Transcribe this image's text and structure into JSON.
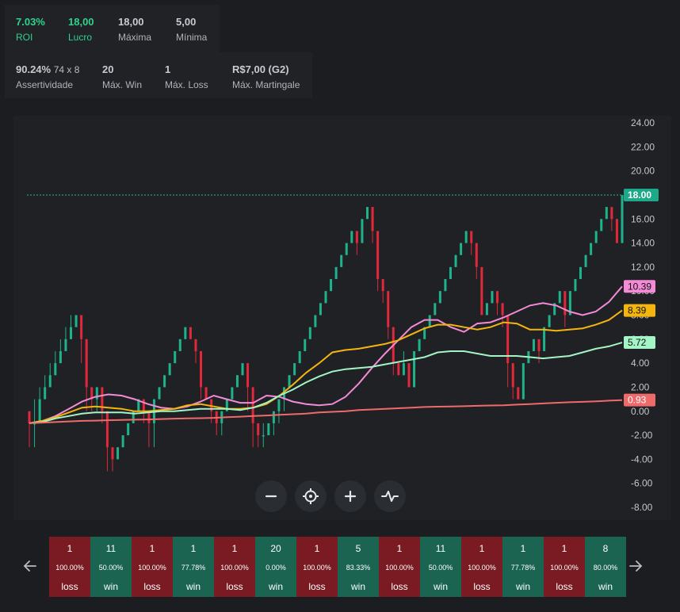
{
  "stats_row1": [
    {
      "value": "7.03%",
      "label": "ROI",
      "accent": "#2fd28e"
    },
    {
      "value": "18,00",
      "label": "Lucro",
      "accent": "#2fd28e"
    },
    {
      "value": "18,00",
      "label": "Máxima"
    },
    {
      "value": "5,00",
      "label": "Mínima"
    }
  ],
  "stats_row2": [
    {
      "value": "90.24%",
      "sub": "74 x 8",
      "label": "Assertividade"
    },
    {
      "value": "20",
      "label": "Máx. Win"
    },
    {
      "value": "1",
      "label": "Máx. Loss"
    },
    {
      "value": "R$7,00 (G2)",
      "label": "Máx. Martingale"
    }
  ],
  "chart_data": {
    "type": "candlestick",
    "y_ticks": [
      "24.00",
      "22.00",
      "20.00",
      "18.00",
      "16.00",
      "14.00",
      "12.00",
      "10.00",
      "8.00",
      "6.00",
      "4.00",
      "2.00",
      "0.00",
      "-2.00",
      "-4.00",
      "-6.00",
      "-8.00"
    ],
    "ylim": [
      -8,
      24
    ],
    "reference_line": 18,
    "up_color": "#1fb38c",
    "down_color": "#e2283b",
    "candles": [
      [
        0,
        -1,
        0,
        -3
      ],
      [
        -1,
        -1,
        1,
        -3
      ],
      [
        -1,
        1,
        2,
        -1
      ],
      [
        1,
        2,
        3,
        1
      ],
      [
        2,
        3,
        4,
        2
      ],
      [
        3,
        4,
        5,
        3
      ],
      [
        4,
        5,
        6,
        4
      ],
      [
        5,
        6,
        7,
        5
      ],
      [
        6,
        7,
        8,
        6
      ],
      [
        7,
        8,
        8,
        7
      ],
      [
        8,
        6,
        8,
        4
      ],
      [
        6,
        2,
        6,
        0
      ],
      [
        2,
        1,
        2,
        0
      ],
      [
        1,
        2,
        2,
        0
      ],
      [
        2,
        0,
        2,
        -1
      ],
      [
        0,
        -3,
        0,
        -5
      ],
      [
        -3,
        -4,
        -3,
        -5
      ],
      [
        -4,
        -3,
        -3,
        -4
      ],
      [
        -3,
        -2,
        -2,
        -3
      ],
      [
        -2,
        -1,
        -1,
        -2
      ],
      [
        -1,
        0,
        0,
        -1
      ],
      [
        0,
        1,
        1,
        0
      ],
      [
        1,
        0,
        1,
        -1
      ],
      [
        0,
        -1,
        0,
        -3
      ],
      [
        -1,
        1,
        1,
        -3
      ],
      [
        1,
        2,
        2,
        1
      ],
      [
        2,
        3,
        3,
        2
      ],
      [
        3,
        4,
        4,
        3
      ],
      [
        4,
        5,
        5,
        4
      ],
      [
        5,
        6,
        6,
        5
      ],
      [
        6,
        7,
        7,
        6
      ],
      [
        7,
        6,
        7,
        6
      ],
      [
        6,
        5,
        6,
        4
      ],
      [
        5,
        2,
        5,
        1
      ],
      [
        2,
        1,
        2,
        1
      ],
      [
        1,
        0,
        1,
        -1
      ],
      [
        0,
        -1,
        0,
        -2
      ],
      [
        -1,
        0,
        0,
        -2
      ],
      [
        0,
        1,
        1,
        0
      ],
      [
        1,
        2,
        2,
        1
      ],
      [
        2,
        3,
        3,
        2
      ],
      [
        3,
        4,
        4,
        3
      ],
      [
        4,
        2,
        4,
        0
      ],
      [
        2,
        -1,
        2,
        -3
      ],
      [
        -1,
        -2,
        -1,
        -3
      ],
      [
        -2,
        -2,
        -1,
        -3
      ],
      [
        -2,
        -1,
        -1,
        -2
      ],
      [
        -1,
        0,
        0,
        -2
      ],
      [
        0,
        1,
        1,
        -1
      ],
      [
        1,
        2,
        2,
        0
      ],
      [
        2,
        3,
        3,
        2
      ],
      [
        3,
        4,
        4,
        3
      ],
      [
        4,
        5,
        5,
        4
      ],
      [
        5,
        6,
        6,
        5
      ],
      [
        6,
        7,
        7,
        6
      ],
      [
        7,
        8,
        8,
        7
      ],
      [
        8,
        9,
        9,
        8
      ],
      [
        9,
        10,
        10,
        9
      ],
      [
        10,
        11,
        11,
        10
      ],
      [
        11,
        12,
        12,
        11
      ],
      [
        12,
        13,
        13,
        12
      ],
      [
        13,
        14,
        14,
        13
      ],
      [
        14,
        15,
        15,
        14
      ],
      [
        15,
        14,
        15,
        13
      ],
      [
        14,
        16,
        16,
        14
      ],
      [
        16,
        17,
        17,
        16
      ],
      [
        17,
        15,
        17,
        14
      ],
      [
        15,
        11,
        15,
        10
      ],
      [
        11,
        10,
        11,
        9
      ],
      [
        10,
        7,
        10,
        6
      ],
      [
        7,
        4,
        7,
        3
      ],
      [
        4,
        3,
        4,
        3
      ],
      [
        3,
        4,
        5,
        3
      ],
      [
        4,
        2,
        4,
        2
      ],
      [
        2,
        5,
        5,
        2
      ],
      [
        5,
        6,
        6,
        5
      ],
      [
        6,
        7,
        7,
        6
      ],
      [
        7,
        8,
        8,
        7
      ],
      [
        8,
        9,
        9,
        8
      ],
      [
        9,
        10,
        10,
        9
      ],
      [
        10,
        11,
        11,
        10
      ],
      [
        11,
        12,
        12,
        11
      ],
      [
        12,
        13,
        13,
        12
      ],
      [
        13,
        14,
        14,
        13
      ],
      [
        14,
        15,
        15,
        14
      ],
      [
        15,
        14,
        15,
        13
      ],
      [
        14,
        12,
        14,
        11
      ],
      [
        12,
        8,
        12,
        8
      ],
      [
        8,
        9,
        9,
        8
      ],
      [
        9,
        10,
        10,
        9
      ],
      [
        10,
        9,
        10,
        8
      ],
      [
        9,
        8,
        9,
        7
      ],
      [
        8,
        4,
        8,
        2
      ],
      [
        4,
        2,
        4,
        1
      ],
      [
        2,
        1,
        2,
        1
      ],
      [
        1,
        4,
        4,
        1
      ],
      [
        4,
        5,
        5,
        4
      ],
      [
        5,
        6,
        6,
        5
      ],
      [
        6,
        5,
        6,
        4
      ],
      [
        5,
        7,
        7,
        5
      ],
      [
        7,
        8,
        8,
        7
      ],
      [
        8,
        9,
        9,
        8
      ],
      [
        9,
        10,
        10,
        9
      ],
      [
        10,
        8,
        10,
        7
      ],
      [
        8,
        10,
        10,
        8
      ],
      [
        10,
        11,
        11,
        10
      ],
      [
        11,
        12,
        12,
        11
      ],
      [
        12,
        13,
        13,
        12
      ],
      [
        13,
        14,
        14,
        13
      ],
      [
        14,
        15,
        15,
        14
      ],
      [
        15,
        16,
        16,
        15
      ],
      [
        16,
        17,
        17,
        16
      ],
      [
        17,
        16,
        17,
        15
      ],
      [
        16,
        14,
        16,
        14
      ],
      [
        14,
        18,
        18,
        14
      ]
    ],
    "series": [
      {
        "name": "",
        "label": "10.39",
        "color": "#f58bd6",
        "values": [
          -1,
          -0.8,
          -0.4,
          0.2,
          0.8,
          1.2,
          1.4,
          1.3,
          1.0,
          0.6,
          0.3,
          0.2,
          0.4,
          0.8,
          1.3,
          1.0,
          0.7,
          0.7,
          1.3,
          1.2,
          0.8,
          0.6,
          0.5,
          0.6,
          1.2,
          2.3,
          3.6,
          4.8,
          5.9,
          7.0,
          7.6,
          7.6,
          7.0,
          6.6,
          7.3,
          7.4,
          7.8,
          8.3,
          8.8,
          9.0,
          8.8,
          8.3,
          8.0,
          8.3,
          9.1,
          10.39
        ]
      },
      {
        "name": "",
        "label": "8.39",
        "color": "#f5b50c",
        "values": [
          -1,
          -0.8,
          -0.5,
          -0.1,
          0.3,
          0.4,
          0.3,
          0.2,
          0.0,
          0.0,
          0.1,
          0.2,
          0.5,
          0.6,
          0.4,
          0.2,
          0.2,
          0.3,
          0.6,
          1.3,
          2.2,
          3.2,
          4.0,
          4.9,
          5.1,
          5.2,
          5.4,
          5.6,
          5.9,
          6.4,
          6.9,
          7.2,
          7.2,
          7.0,
          6.8,
          7.0,
          7.4,
          7.3,
          6.8,
          6.8,
          6.7,
          6.8,
          6.9,
          7.2,
          7.6,
          8.39
        ]
      },
      {
        "name": "",
        "label": "5.72",
        "color": "#a3f5c5",
        "values": [
          -1,
          -0.9,
          -0.6,
          -0.4,
          -0.2,
          -0.1,
          -0.1,
          -0.1,
          -0.2,
          -0.1,
          0.0,
          0.0,
          0.1,
          0.2,
          0.2,
          0.2,
          0.1,
          0.3,
          0.7,
          1.3,
          1.8,
          2.4,
          2.9,
          3.3,
          3.5,
          3.6,
          3.7,
          3.9,
          4.1,
          4.3,
          4.5,
          4.9,
          5.0,
          5.0,
          4.8,
          4.6,
          4.6,
          4.6,
          4.5,
          4.4,
          4.5,
          4.6,
          4.9,
          5.2,
          5.4,
          5.72
        ]
      },
      {
        "name": "",
        "label": "0.93",
        "color": "#ef6b6b",
        "values": [
          -1,
          -0.95,
          -0.9,
          -0.85,
          -0.8,
          -0.78,
          -0.75,
          -0.72,
          -0.7,
          -0.68,
          -0.65,
          -0.62,
          -0.6,
          -0.58,
          -0.55,
          -0.5,
          -0.45,
          -0.4,
          -0.35,
          -0.3,
          -0.25,
          -0.2,
          -0.1,
          -0.05,
          0.0,
          0.1,
          0.15,
          0.2,
          0.25,
          0.3,
          0.35,
          0.38,
          0.4,
          0.42,
          0.45,
          0.48,
          0.5,
          0.55,
          0.6,
          0.65,
          0.7,
          0.75,
          0.78,
          0.82,
          0.88,
          0.93
        ]
      }
    ],
    "current_value": {
      "label": "18.00",
      "color": "#1ea88a"
    }
  },
  "controls": [
    {
      "name": "zoom-out-button",
      "icon": "minus-icon"
    },
    {
      "name": "center-button",
      "icon": "crosshair-icon"
    },
    {
      "name": "zoom-in-button",
      "icon": "plus-icon"
    },
    {
      "name": "indicators-button",
      "icon": "pulse-icon"
    }
  ],
  "nav": {
    "prev_icon": "arrow-left-icon",
    "next_icon": "arrow-right-icon"
  },
  "cards": [
    {
      "count": "1",
      "pct": "100.00%",
      "result": "loss"
    },
    {
      "count": "11",
      "pct": "50.00%",
      "result": "win"
    },
    {
      "count": "1",
      "pct": "100.00%",
      "result": "loss"
    },
    {
      "count": "1",
      "pct": "77.78%",
      "result": "win"
    },
    {
      "count": "1",
      "pct": "100.00%",
      "result": "loss"
    },
    {
      "count": "20",
      "pct": "0.00%",
      "result": "win"
    },
    {
      "count": "1",
      "pct": "100.00%",
      "result": "loss"
    },
    {
      "count": "5",
      "pct": "83.33%",
      "result": "win"
    },
    {
      "count": "1",
      "pct": "100.00%",
      "result": "loss"
    },
    {
      "count": "11",
      "pct": "50.00%",
      "result": "win"
    },
    {
      "count": "1",
      "pct": "100.00%",
      "result": "loss"
    },
    {
      "count": "1",
      "pct": "77.78%",
      "result": "win"
    },
    {
      "count": "1",
      "pct": "100.00%",
      "result": "loss"
    },
    {
      "count": "8",
      "pct": "80.00%",
      "result": "win"
    }
  ]
}
